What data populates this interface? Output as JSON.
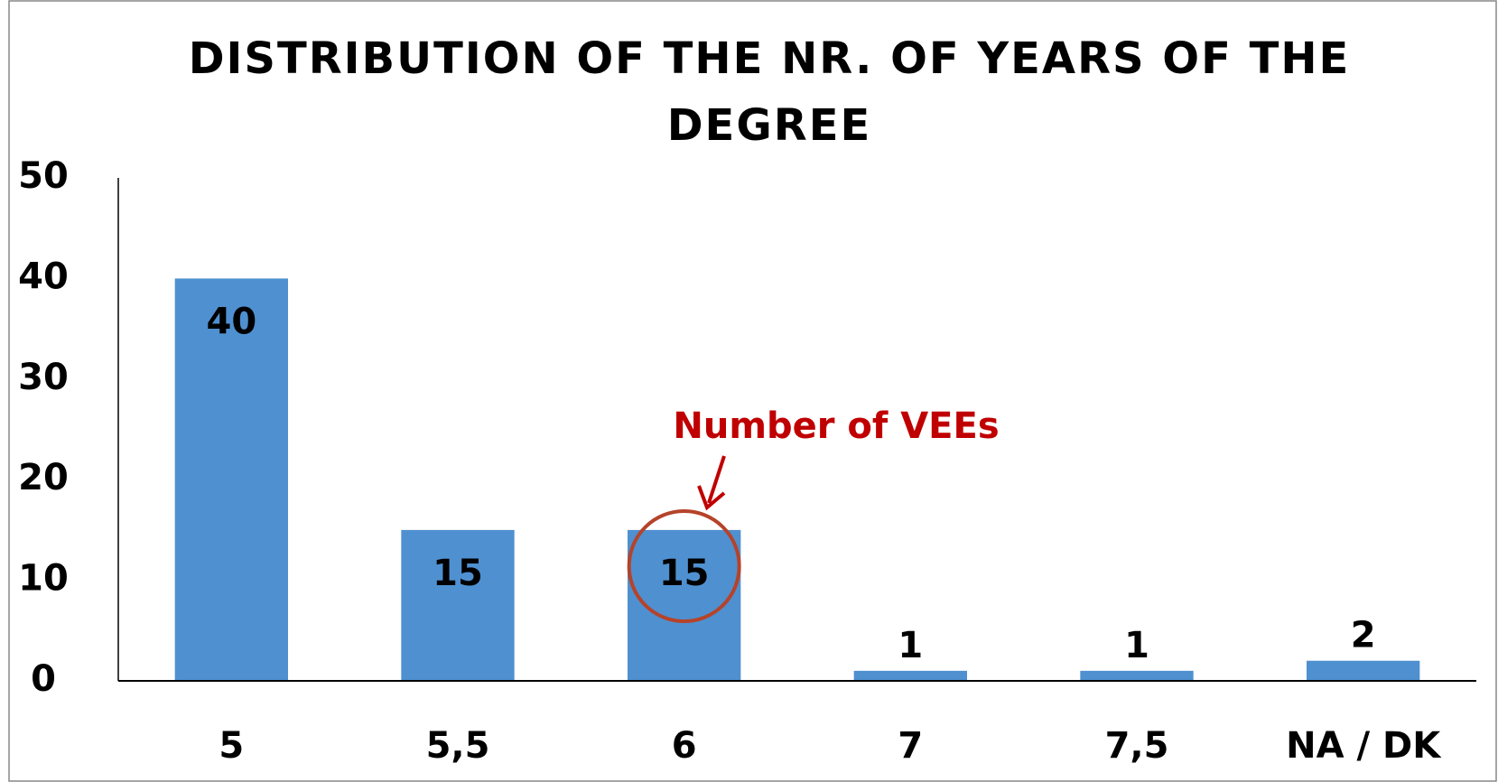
{
  "chart_data": {
    "type": "bar",
    "title": "DISTRIBUTION OF THE NR. OF YEARS OF THE DEGREE",
    "categories": [
      "5",
      "5,5",
      "6",
      "7",
      "7,5",
      "NA / DK"
    ],
    "values": [
      40,
      15,
      15,
      1,
      1,
      2
    ],
    "color": "#4f90d0",
    "ylim": [
      0,
      50
    ],
    "yticks": [
      0,
      10,
      20,
      30,
      40,
      50
    ],
    "grid": false,
    "annotation": "Number of VEEs"
  }
}
